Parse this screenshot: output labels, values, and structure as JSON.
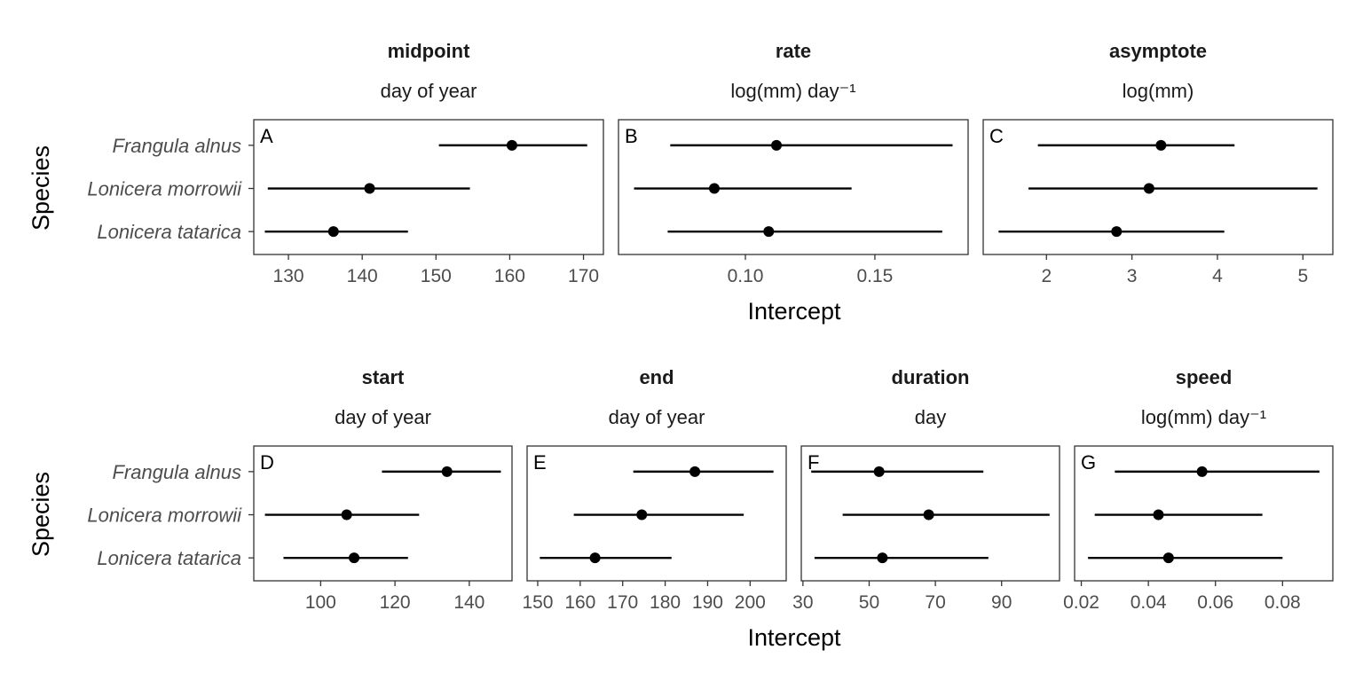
{
  "figure": {
    "xlabel": "Intercept",
    "ylabel": "Species",
    "species": [
      "Frangula alnus",
      "Lonicera morrowii",
      "Lonicera tatarica"
    ]
  },
  "chart_data": [
    {
      "type": "scatter",
      "panel": "A",
      "title": "midpoint",
      "unit": "day of year",
      "xlabel": "Intercept",
      "ylabel": "Species",
      "categories": [
        "Frangula alnus",
        "Lonicera morrowii",
        "Lonicera tatarica"
      ],
      "values": [
        160.3,
        141.0,
        136.1
      ],
      "lower": [
        150.4,
        127.2,
        126.8
      ],
      "upper": [
        170.5,
        154.6,
        146.2
      ],
      "xlim": [
        125.3,
        172.7
      ],
      "xticks": [
        130,
        140,
        150,
        160,
        170
      ],
      "xtick_labels": [
        "130",
        "140",
        "150",
        "160",
        "170"
      ]
    },
    {
      "type": "scatter",
      "panel": "B",
      "title": "rate",
      "unit": "log(mm) day⁻¹",
      "xlabel": "Intercept",
      "ylabel": "Species",
      "categories": [
        "Frangula alnus",
        "Lonicera morrowii",
        "Lonicera tatarica"
      ],
      "values": [
        0.112,
        0.088,
        0.109
      ],
      "lower": [
        0.071,
        0.057,
        0.07
      ],
      "upper": [
        0.18,
        0.141,
        0.176
      ],
      "xlim": [
        0.051,
        0.186
      ],
      "xticks": [
        0.1,
        0.15
      ],
      "xtick_labels": [
        "0.10",
        "0.15"
      ]
    },
    {
      "type": "scatter",
      "panel": "C",
      "title": "asymptote",
      "unit": "log(mm)",
      "xlabel": "Intercept",
      "ylabel": "Species",
      "categories": [
        "Frangula alnus",
        "Lonicera morrowii",
        "Lonicera tatarica"
      ],
      "values": [
        3.34,
        3.2,
        2.82
      ],
      "lower": [
        1.9,
        1.79,
        1.44
      ],
      "upper": [
        4.2,
        5.17,
        4.08
      ],
      "xlim": [
        1.26,
        5.35
      ],
      "xticks": [
        2,
        3,
        4,
        5
      ],
      "xtick_labels": [
        "2",
        "3",
        "4",
        "5"
      ]
    },
    {
      "type": "scatter",
      "panel": "D",
      "title": "start",
      "unit": "day of year",
      "xlabel": "Intercept",
      "ylabel": "Species",
      "categories": [
        "Frangula alnus",
        "Lonicera morrowii",
        "Lonicera tatarica"
      ],
      "values": [
        134,
        107,
        109
      ],
      "lower": [
        116.5,
        85,
        90
      ],
      "upper": [
        148.5,
        126.5,
        123.5
      ],
      "xlim": [
        82,
        151.5
      ],
      "xticks": [
        100,
        120,
        140
      ],
      "xtick_labels": [
        "100",
        "120",
        "140"
      ]
    },
    {
      "type": "scatter",
      "panel": "E",
      "title": "end",
      "unit": "day of year",
      "xlabel": "Intercept",
      "ylabel": "Species",
      "categories": [
        "Frangula alnus",
        "Lonicera morrowii",
        "Lonicera tatarica"
      ],
      "values": [
        187,
        174.5,
        163.5
      ],
      "lower": [
        172.5,
        158.5,
        150.5
      ],
      "upper": [
        205.5,
        198.5,
        181.5
      ],
      "xlim": [
        147.5,
        208.5
      ],
      "xticks": [
        150,
        160,
        170,
        180,
        190,
        200
      ],
      "xtick_labels": [
        "150",
        "160",
        "170",
        "180",
        "190",
        "200"
      ]
    },
    {
      "type": "scatter",
      "panel": "F",
      "title": "duration",
      "unit": "day",
      "xlabel": "Intercept",
      "ylabel": "Species",
      "categories": [
        "Frangula alnus",
        "Lonicera morrowii",
        "Lonicera tatarica"
      ],
      "values": [
        53,
        68,
        54
      ],
      "lower": [
        32.5,
        42,
        33.5
      ],
      "upper": [
        84.5,
        104.5,
        86
      ],
      "xlim": [
        29.5,
        107.5
      ],
      "xticks": [
        30,
        50,
        70,
        90
      ],
      "xtick_labels": [
        "30",
        "50",
        "70",
        "90"
      ]
    },
    {
      "type": "scatter",
      "panel": "G",
      "title": "speed",
      "unit": "log(mm) day⁻¹",
      "xlabel": "Intercept",
      "ylabel": "Species",
      "categories": [
        "Frangula alnus",
        "Lonicera morrowii",
        "Lonicera tatarica"
      ],
      "values": [
        0.056,
        0.043,
        0.046
      ],
      "lower": [
        0.03,
        0.024,
        0.022
      ],
      "upper": [
        0.091,
        0.074,
        0.08
      ],
      "xlim": [
        0.018,
        0.095
      ],
      "xticks": [
        0.02,
        0.04,
        0.06,
        0.08
      ],
      "xtick_labels": [
        "0.02",
        "0.04",
        "0.06",
        "0.08"
      ]
    }
  ]
}
